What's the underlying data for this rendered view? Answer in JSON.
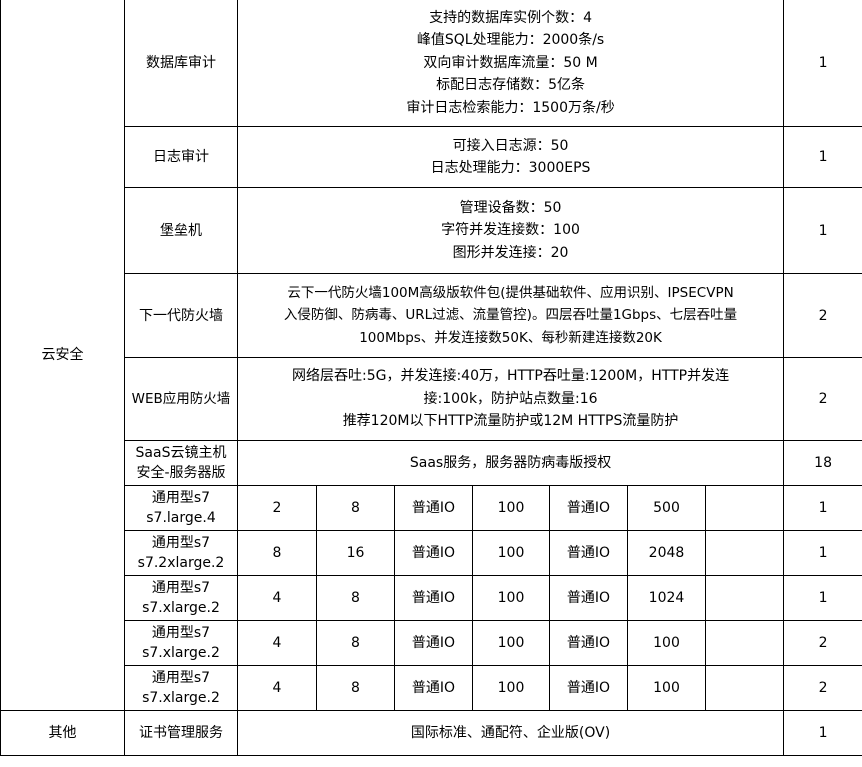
{
  "category_security": "云安全",
  "category_other": "其他",
  "rows": [
    {
      "name": "数据库审计",
      "desc": [
        "支持的数据库实例个数：4",
        "峰值SQL处理能力：2000条/s",
        "双向审计数据库流量：50 M",
        "标配日志存储数：5亿条",
        "审计日志检索能力：1500万条/秒"
      ],
      "qty": "1"
    },
    {
      "name": "日志审计",
      "desc": [
        "可接入日志源：50",
        "日志处理能力：3000EPS"
      ],
      "qty": "1"
    },
    {
      "name": "堡垒机",
      "desc": [
        "管理设备数：50",
        "字符并发连接数：100",
        "图形并发连接：20"
      ],
      "qty": "1"
    },
    {
      "name": "下一代防火墙",
      "desc": [
        "云下一代防火墙100M高级版软件包(提供基础软件、应用识别、IPSECVPN",
        "入侵防御、防病毒、URL过滤、流量管控)。四层吞吐量1Gbps、七层吞吐量",
        "100Mbps、并发连接数50K、每秒新建连接数20K"
      ],
      "qty": "2"
    },
    {
      "name": "WEB应用防火墙",
      "desc": [
        "网络层吞吐:5G，并发连接:40万，HTTP吞吐量:1200M，HTTP并发连",
        "接:100k，防护站点数量:16",
        "推荐120M以下HTTP流量防护或12M HTTPS流量防护"
      ],
      "qty": "2"
    },
    {
      "name": [
        "SaaS云镜主机",
        "安全-服务器版"
      ],
      "desc": [
        "Saas服务，服务器防病毒版授权"
      ],
      "qty": "18"
    }
  ],
  "vms": [
    {
      "type": "通用型s7",
      "spec": "s7.large.4",
      "cpu": "2",
      "mem": "8",
      "sys_disk_type": "普通IO",
      "sys_disk_size": "100",
      "data_disk_type": "普通IO",
      "data_disk_size": "500",
      "extra": "",
      "qty": "1"
    },
    {
      "type": "通用型s7",
      "spec": "s7.2xlarge.2",
      "cpu": "8",
      "mem": "16",
      "sys_disk_type": "普通IO",
      "sys_disk_size": "100",
      "data_disk_type": "普通IO",
      "data_disk_size": "2048",
      "extra": "",
      "qty": "1"
    },
    {
      "type": "通用型s7",
      "spec": "s7.xlarge.2",
      "cpu": "4",
      "mem": "8",
      "sys_disk_type": "普通IO",
      "sys_disk_size": "100",
      "data_disk_type": "普通IO",
      "data_disk_size": "1024",
      "extra": "",
      "qty": "1"
    },
    {
      "type": "通用型s7",
      "spec": "s7.xlarge.2",
      "cpu": "4",
      "mem": "8",
      "sys_disk_type": "普通IO",
      "sys_disk_size": "100",
      "data_disk_type": "普通IO",
      "data_disk_size": "100",
      "extra": "",
      "qty": "2"
    },
    {
      "type": "通用型s7",
      "spec": "s7.xlarge.2",
      "cpu": "4",
      "mem": "8",
      "sys_disk_type": "普通IO",
      "sys_disk_size": "100",
      "data_disk_type": "普通IO",
      "data_disk_size": "100",
      "extra": "",
      "qty": "2"
    }
  ],
  "other": {
    "name": "证书管理服务",
    "desc": "国际标准、通配符、企业版(OV)",
    "qty": "1"
  }
}
